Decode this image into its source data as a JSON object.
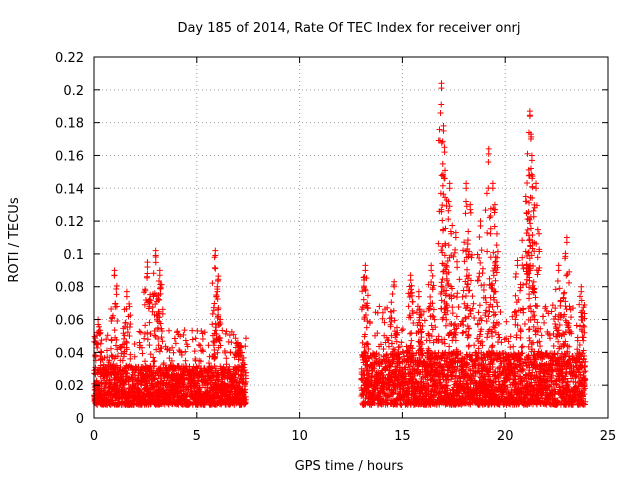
{
  "chart_data": {
    "type": "scatter",
    "title": "Day 185 of 2014, Rate Of TEC Index for receiver onrj",
    "xlabel": "GPS time / hours",
    "ylabel": "ROTI / TECUs",
    "xlim": [
      0,
      25
    ],
    "ylim": [
      0,
      0.22
    ],
    "x_ticks": [
      "0",
      "5",
      "10",
      "15",
      "20",
      "25"
    ],
    "y_ticks": [
      "0",
      "0.02",
      "0.04",
      "0.06",
      "0.08",
      "0.1",
      "0.12",
      "0.14",
      "0.16",
      "0.18",
      "0.2",
      "0.22"
    ],
    "grid": true,
    "marker": "+",
    "color": "#ff0000",
    "data_segments": [
      {
        "x_start": 0.0,
        "x_end": 7.4,
        "typical_range": [
          0.008,
          0.032
        ]
      },
      {
        "x_start": 13.0,
        "x_end": 23.9,
        "typical_range": [
          0.008,
          0.04
        ]
      }
    ],
    "spikes": [
      {
        "x": 0.2,
        "y": 0.06
      },
      {
        "x": 1.0,
        "y": 0.09
      },
      {
        "x": 1.6,
        "y": 0.077
      },
      {
        "x": 2.6,
        "y": 0.095
      },
      {
        "x": 3.0,
        "y": 0.102
      },
      {
        "x": 3.2,
        "y": 0.09
      },
      {
        "x": 5.9,
        "y": 0.102
      },
      {
        "x": 6.0,
        "y": 0.08
      },
      {
        "x": 7.0,
        "y": 0.046
      },
      {
        "x": 13.2,
        "y": 0.093
      },
      {
        "x": 14.6,
        "y": 0.083
      },
      {
        "x": 15.4,
        "y": 0.087
      },
      {
        "x": 15.8,
        "y": 0.077
      },
      {
        "x": 16.4,
        "y": 0.093
      },
      {
        "x": 16.9,
        "y": 0.204
      },
      {
        "x": 17.0,
        "y": 0.178
      },
      {
        "x": 17.05,
        "y": 0.165
      },
      {
        "x": 17.3,
        "y": 0.143
      },
      {
        "x": 17.6,
        "y": 0.113
      },
      {
        "x": 18.1,
        "y": 0.143
      },
      {
        "x": 18.3,
        "y": 0.13
      },
      {
        "x": 18.8,
        "y": 0.12
      },
      {
        "x": 19.2,
        "y": 0.164
      },
      {
        "x": 19.4,
        "y": 0.143
      },
      {
        "x": 19.5,
        "y": 0.13
      },
      {
        "x": 20.6,
        "y": 0.096
      },
      {
        "x": 21.0,
        "y": 0.135
      },
      {
        "x": 21.2,
        "y": 0.187
      },
      {
        "x": 21.25,
        "y": 0.173
      },
      {
        "x": 21.3,
        "y": 0.16
      },
      {
        "x": 21.5,
        "y": 0.143
      },
      {
        "x": 22.6,
        "y": 0.093
      },
      {
        "x": 23.0,
        "y": 0.11
      },
      {
        "x": 23.7,
        "y": 0.08
      }
    ]
  }
}
